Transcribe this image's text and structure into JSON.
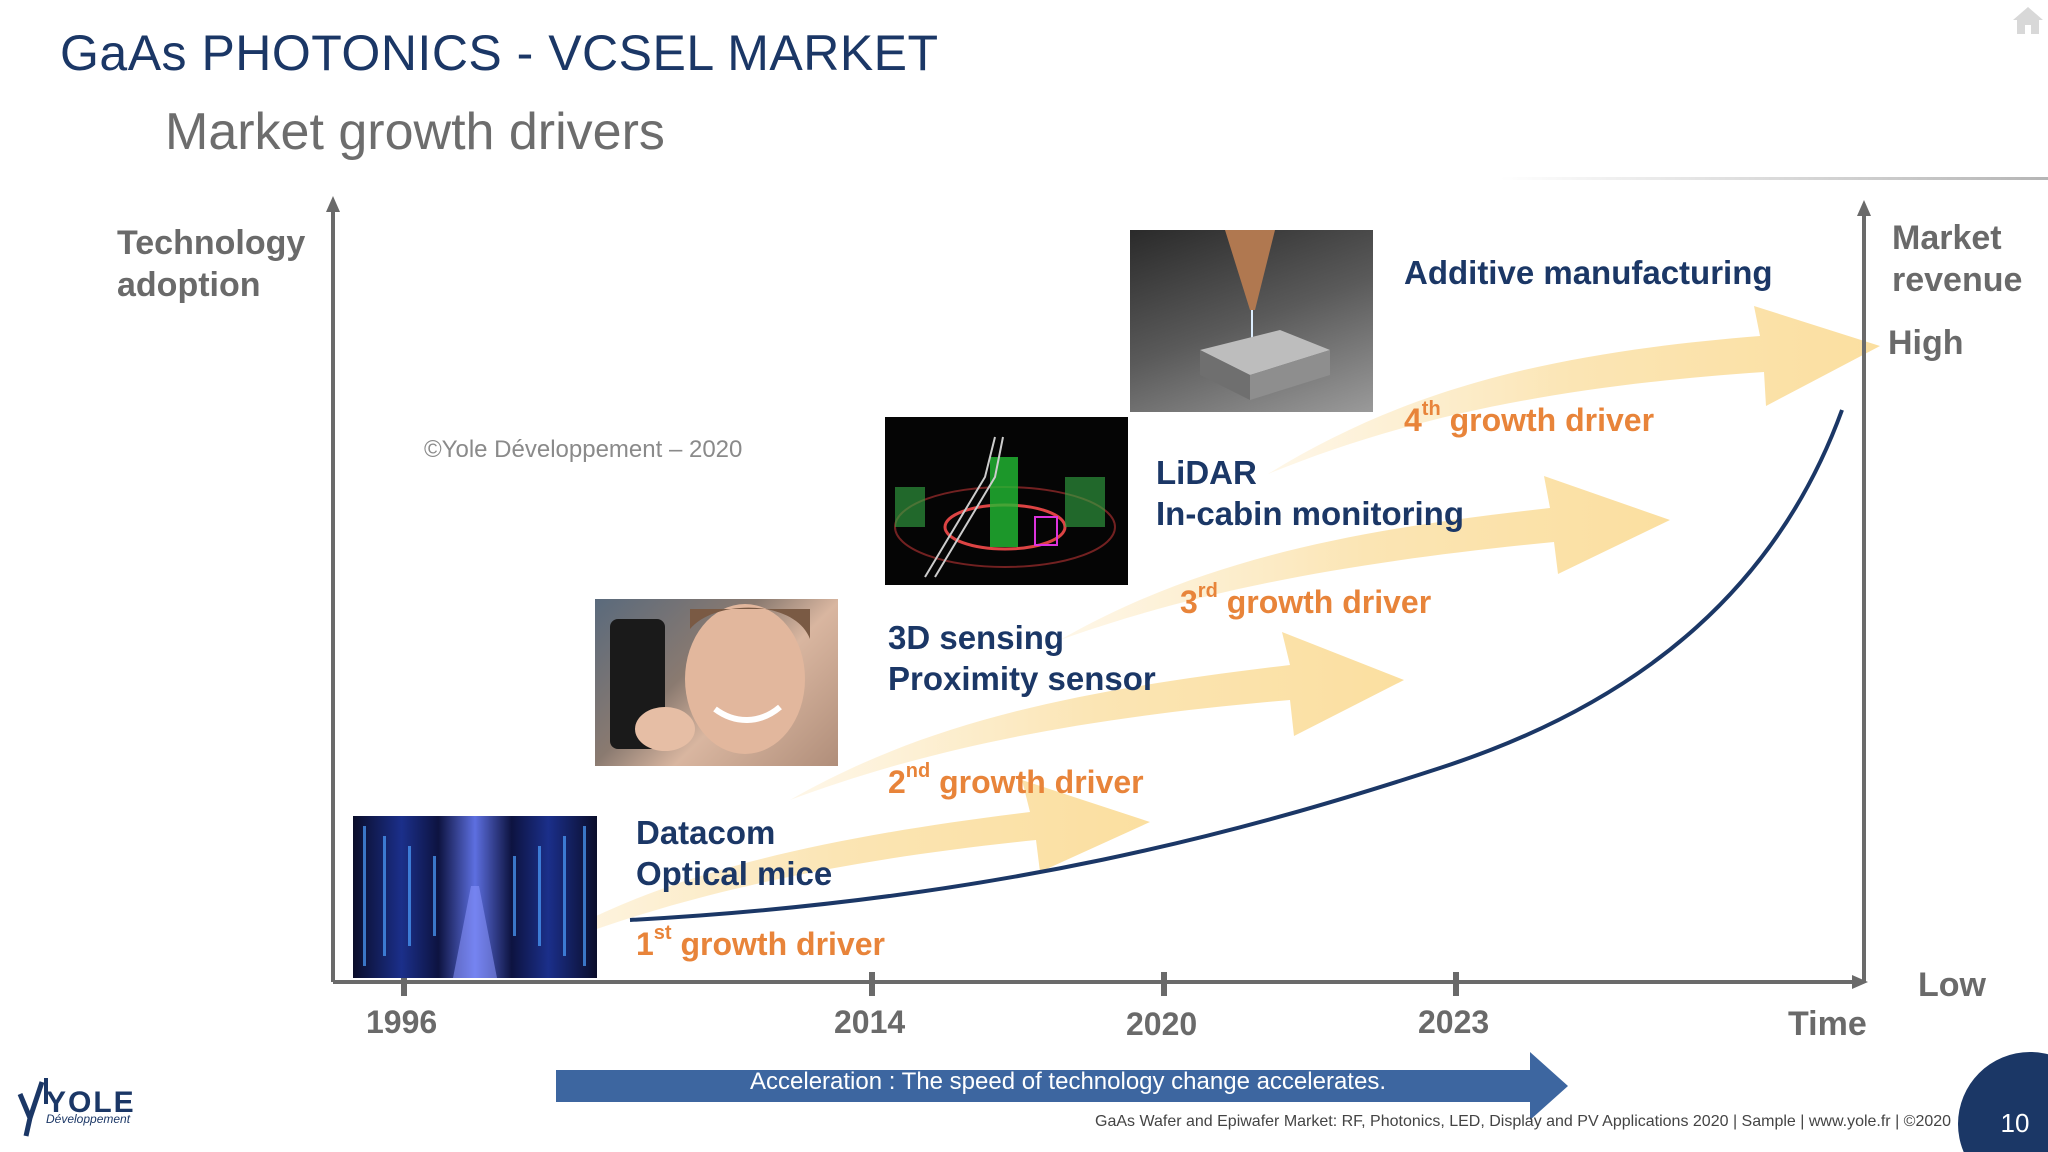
{
  "header": {
    "title": "GaAs PHOTONICS - VCSEL MARKET",
    "subtitle": "Market growth drivers"
  },
  "axes": {
    "y_left_label_line1": "Technology",
    "y_left_label_line2": "adoption",
    "y_right_label_line1": "Market",
    "y_right_label_line2": "revenue",
    "y_right_high": "High",
    "y_right_low": "Low",
    "x_label": "Time",
    "x_ticks": [
      "1996",
      "2014",
      "2020",
      "2023"
    ]
  },
  "applications": [
    {
      "line1": "Datacom",
      "line2": "Optical mice"
    },
    {
      "line1": "3D sensing",
      "line2": "Proximity sensor"
    },
    {
      "line1": "LiDAR",
      "line2": "In-cabin monitoring"
    },
    {
      "line1": "Additive manufacturing",
      "line2": ""
    }
  ],
  "drivers": [
    {
      "num": "1",
      "sup": "st",
      "text": "growth driver"
    },
    {
      "num": "2",
      "sup": "nd",
      "text": "growth driver"
    },
    {
      "num": "3",
      "sup": "rd",
      "text": "growth driver"
    },
    {
      "num": "4",
      "sup": "th",
      "text": "growth driver"
    }
  ],
  "copyright": "©Yole Développement – 2020",
  "acceleration": "Acceleration : The speed of technology change accelerates.",
  "footer": "GaAs Wafer and Epiwafer Market: RF, Photonics, LED, Display and PV Applications 2020 | Sample | www.yole.fr | ©2020",
  "page_number": "10",
  "logo": {
    "name": "YOLE",
    "sub": "Développement"
  },
  "colors": {
    "navy": "#1b3766",
    "orange": "#e8843a",
    "arrow_fill": "#fbe5b4",
    "accel_bar": "#3d66a0",
    "axis": "#6a6a6a"
  },
  "images": [
    {
      "icon": "datacenter-photo"
    },
    {
      "icon": "smartphone-face-photo"
    },
    {
      "icon": "lidar-pointcloud-photo"
    },
    {
      "icon": "additive-manufacturing-photo"
    }
  ]
}
